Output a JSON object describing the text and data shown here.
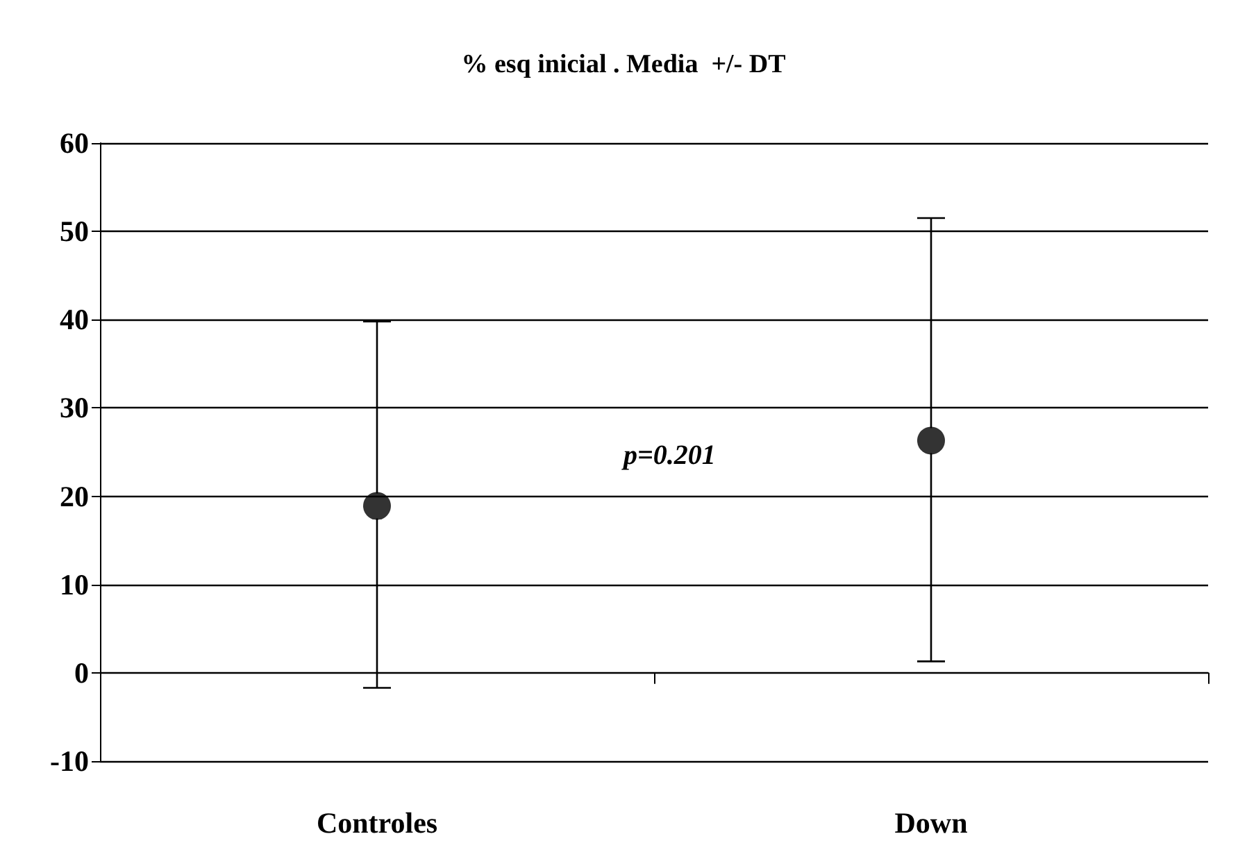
{
  "chart_data": {
    "type": "scatter",
    "title": "% esq inicial . Media  +/- DT",
    "categories": [
      "Controles",
      "Down"
    ],
    "values": [
      18.9,
      26.3
    ],
    "errors": [
      [
        -1.7,
        39.8
      ],
      [
        1.3,
        51.5
      ]
    ],
    "color": "#000000",
    "marker": "circle",
    "ylim": [
      -10,
      60
    ],
    "yticks": [
      -10,
      0,
      10,
      20,
      30,
      40,
      50,
      60
    ],
    "grid": "y",
    "annotations": [
      "p=0.201"
    ]
  }
}
